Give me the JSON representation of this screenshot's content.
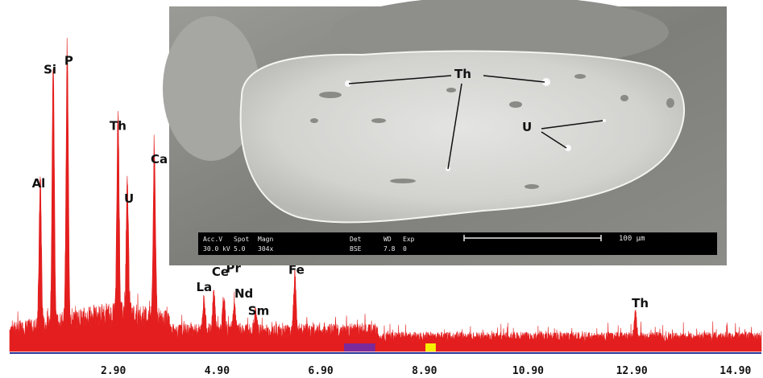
{
  "chart_data": {
    "type": "area",
    "title": "",
    "xlabel": "",
    "ylabel": "",
    "xlim": [
      0.9,
      15.4
    ],
    "ylim": [
      0,
      100
    ],
    "grid": false,
    "x_ticks": [
      "2.90",
      "4.90",
      "6.90",
      "8.90",
      "10.90",
      "12.90",
      "14.90"
    ],
    "x_tick_values": [
      2.9,
      4.9,
      6.9,
      8.9,
      10.9,
      12.9,
      14.9
    ],
    "baseline_noise": 8,
    "colors": {
      "spectrum": "#e41e1e",
      "roi_purple": "#7a2a9a",
      "roi_yellow": "#f5f000",
      "axis": "#2a3aa0"
    },
    "peaks": [
      {
        "label": "Al",
        "x": 1.49,
        "y": 48
      },
      {
        "label": "Si",
        "x": 1.74,
        "y": 86
      },
      {
        "label": "P",
        "x": 2.01,
        "y": 89
      },
      {
        "label": "Th",
        "x": 2.99,
        "y": 67
      },
      {
        "label": "U",
        "x": 3.17,
        "y": 43
      },
      {
        "label": "Ca",
        "x": 3.69,
        "y": 56
      },
      {
        "label": "La",
        "x": 4.65,
        "y": 10
      },
      {
        "label": "Ce",
        "x": 4.84,
        "y": 13
      },
      {
        "label": "Pr",
        "x": 5.03,
        "y": 11
      },
      {
        "label": "Nd",
        "x": 5.23,
        "y": 9
      },
      {
        "label": "Sm",
        "x": 5.64,
        "y": 6
      },
      {
        "label": "Fe",
        "x": 6.4,
        "y": 19
      },
      {
        "label": "Th",
        "x": 12.97,
        "y": 8
      }
    ]
  },
  "sem_image": {
    "labels": [
      "Th",
      "U"
    ],
    "info_bar": {
      "headers": [
        "Acc.V",
        "Spot",
        "Magn",
        "Det",
        "WD",
        "Exp"
      ],
      "values": [
        "30.0 kV",
        "5.0",
        "304x",
        "BSE",
        "7.8",
        "0"
      ],
      "scale_text": "100 µm"
    }
  }
}
